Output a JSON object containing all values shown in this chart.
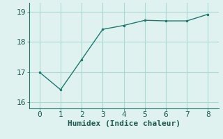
{
  "x": [
    0,
    1,
    2,
    3,
    4,
    5,
    6,
    7,
    8
  ],
  "y": [
    17.0,
    16.42,
    17.42,
    18.42,
    18.55,
    18.72,
    18.7,
    18.7,
    18.92
  ],
  "line_color": "#1a7a6e",
  "marker_color": "#1a7a6e",
  "bg_color": "#dff2f0",
  "grid_color": "#aad8d3",
  "xlabel": "Humidex (Indice chaleur)",
  "xlabel_fontsize": 8,
  "tick_fontsize": 8,
  "ylim": [
    15.8,
    19.3
  ],
  "xlim": [
    -0.5,
    8.5
  ],
  "yticks": [
    16,
    17,
    18,
    19
  ],
  "xticks": [
    0,
    1,
    2,
    3,
    4,
    5,
    6,
    7,
    8
  ]
}
